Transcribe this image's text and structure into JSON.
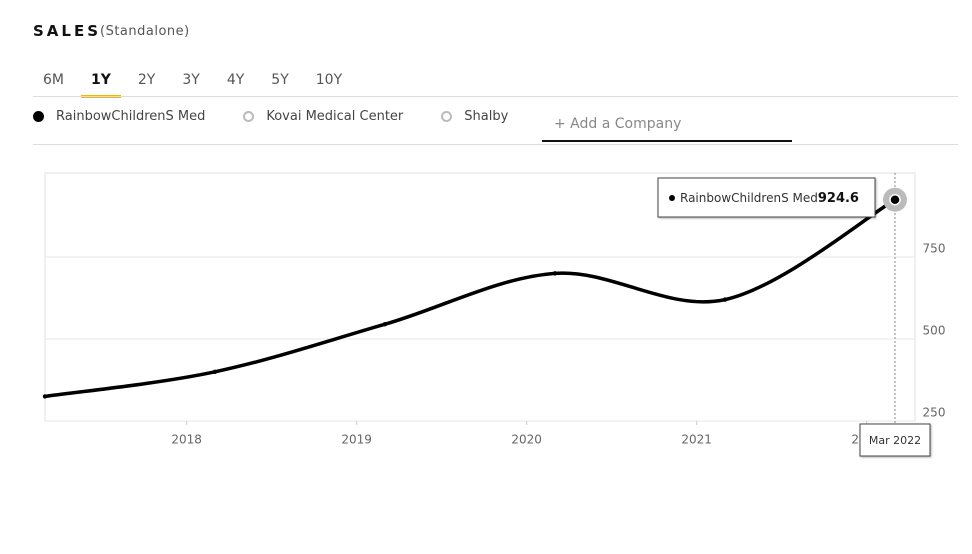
{
  "header": {
    "title": "SALES",
    "subtitle": "(Standalone)"
  },
  "tabs": {
    "items": [
      "6M",
      "1Y",
      "2Y",
      "3Y",
      "4Y",
      "5Y",
      "10Y"
    ],
    "active": 1
  },
  "other_companies": [
    "Kovai Medical Center",
    "Shalby"
  ],
  "add_company": "+ Add a Company",
  "chart_data": {
    "type": "line",
    "x": [
      "2017-03",
      "2018-03",
      "2019-03",
      "2020-03",
      "2021-03",
      "2022-03"
    ],
    "series": [
      {
        "name": "RainbowChildrenS Med",
        "color": "#000000",
        "values": [
          325,
          400,
          545,
          700,
          620,
          924.6
        ]
      }
    ],
    "xlim": [
      "2017-03",
      "2022-03"
    ],
    "xticks": [
      2018,
      2019,
      2020,
      2021,
      2022
    ],
    "ylim": [
      250,
      1006
    ],
    "yticks": [
      250,
      500,
      750
    ],
    "grid": true,
    "tooltip_x": "Mar 2022"
  }
}
